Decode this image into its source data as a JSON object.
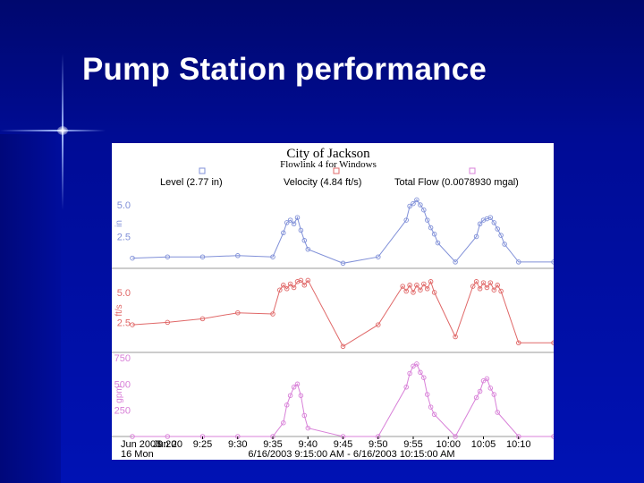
{
  "slide": {
    "title": "Pump Station performance"
  },
  "chart_data": {
    "type": "line",
    "title": "City of Jackson",
    "subtitle": "Flowlink 4 for Windows",
    "legend": [
      {
        "label": "Level (2.77 in)",
        "color": "#8090d8"
      },
      {
        "label": "Velocity (4.84 ft/s)",
        "color": "#e06868"
      },
      {
        "label": "Total Flow (0.0078930 mgal)",
        "color": "#d880d8"
      }
    ],
    "x_ticks": [
      "9:25",
      "9:30",
      "9:35",
      "9:40",
      "9:45",
      "9:50",
      "9:55",
      "10:00",
      "10:05",
      "10:10"
    ],
    "x_tick_values": [
      25,
      30,
      35,
      40,
      45,
      50,
      55,
      60,
      65,
      70
    ],
    "x_first_tick": "Jun 20",
    "x_overlap_text": "9:20",
    "x_date_top": "Jun 2003",
    "x_date_bottom": "16 Mon",
    "x_range_label": "6/16/2003 9:15:00 AM - 6/16/2003 10:15:00 AM",
    "xlim": [
      15,
      75
    ],
    "panels": [
      {
        "name": "Level",
        "unit": "in",
        "color": "#8090d8",
        "ylim": [
          0.0,
          6.2
        ],
        "y_ticks": [
          "5.0",
          "2.5"
        ],
        "y_tick_values": [
          5.0,
          2.5
        ],
        "x": [
          15,
          20,
          25,
          30,
          35,
          36.5,
          37,
          37.5,
          38,
          38.5,
          39,
          39.5,
          40,
          45,
          50,
          54,
          54.5,
          55,
          55.5,
          56,
          56.5,
          57,
          57.5,
          58,
          58.5,
          61,
          64,
          64.5,
          65,
          65.5,
          66,
          66.5,
          67,
          67.5,
          68,
          70,
          75
        ],
        "y": [
          0.8,
          0.9,
          0.9,
          1.0,
          0.9,
          2.8,
          3.6,
          3.8,
          3.5,
          4.0,
          3.0,
          2.2,
          1.5,
          0.4,
          0.9,
          3.8,
          4.9,
          5.1,
          5.4,
          5.0,
          4.6,
          3.8,
          3.2,
          2.7,
          2.0,
          0.5,
          2.5,
          3.5,
          3.8,
          3.9,
          4.0,
          3.6,
          3.1,
          2.6,
          1.9,
          0.5,
          0.5
        ]
      },
      {
        "name": "Velocity",
        "unit": "ft/s",
        "color": "#e06868",
        "ylim": [
          0.0,
          7.0
        ],
        "y_ticks": [
          "5.0",
          "2.5"
        ],
        "y_tick_values": [
          5.0,
          2.5
        ],
        "x": [
          15,
          20,
          25,
          30,
          35,
          36,
          36.5,
          37,
          37.5,
          38,
          38.5,
          39,
          39.5,
          40,
          45,
          50,
          53.5,
          54,
          54.5,
          55,
          55.5,
          56,
          56.5,
          57,
          57.5,
          58,
          61,
          63.5,
          64,
          64.5,
          65,
          65.5,
          66,
          66.5,
          67,
          67.5,
          70,
          75
        ],
        "y": [
          2.3,
          2.5,
          2.8,
          3.3,
          3.2,
          5.2,
          5.6,
          5.3,
          5.7,
          5.4,
          5.9,
          6.0,
          5.6,
          6.0,
          0.5,
          2.3,
          5.5,
          5.1,
          5.6,
          5.0,
          5.6,
          5.2,
          5.7,
          5.3,
          5.9,
          5.0,
          1.3,
          5.5,
          5.9,
          5.3,
          5.8,
          5.4,
          5.8,
          5.2,
          5.6,
          5.1,
          0.8,
          0.8
        ]
      },
      {
        "name": "Total Flow",
        "unit": "gpm",
        "color": "#d880d8",
        "ylim": [
          0,
          800
        ],
        "y_ticks": [
          "750",
          "500",
          "250"
        ],
        "y_tick_values": [
          750,
          500,
          250
        ],
        "x": [
          15,
          20,
          25,
          30,
          35,
          36.5,
          37,
          37.5,
          38,
          38.5,
          39,
          39.5,
          40,
          45,
          50,
          54,
          54.5,
          55,
          55.5,
          56,
          56.5,
          57,
          57.5,
          58,
          61,
          64,
          64.5,
          65,
          65.5,
          66,
          66.5,
          67,
          70,
          75
        ],
        "y": [
          0,
          0,
          0,
          0,
          0,
          130,
          300,
          390,
          470,
          500,
          390,
          200,
          80,
          0,
          0,
          470,
          600,
          670,
          690,
          610,
          560,
          400,
          280,
          210,
          0,
          370,
          430,
          530,
          550,
          460,
          400,
          230,
          0,
          0
        ]
      }
    ],
    "grid": false
  }
}
